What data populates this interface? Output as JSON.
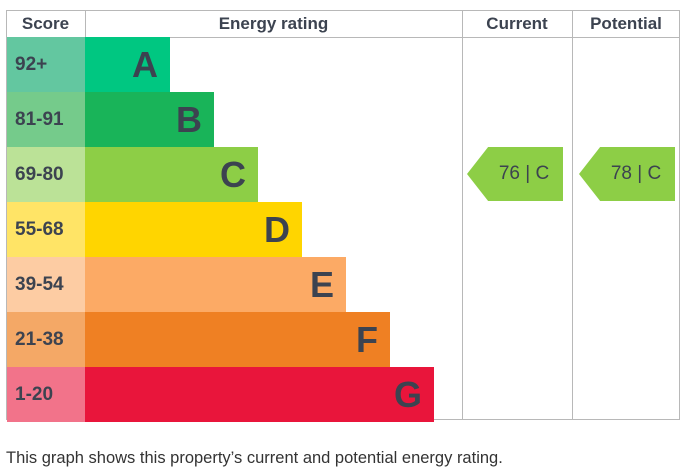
{
  "chart_data": {
    "type": "bar",
    "headers": {
      "score": "Score",
      "rating": "Energy rating",
      "current": "Current",
      "potential": "Potential"
    },
    "bands": [
      {
        "score": "92+",
        "letter": "A",
        "color": "#00c781",
        "score_color": "#63c7a0"
      },
      {
        "score": "81-91",
        "letter": "B",
        "color": "#19b459",
        "score_color": "#75cb8b"
      },
      {
        "score": "69-80",
        "letter": "C",
        "color": "#8dce46",
        "score_color": "#bbe297"
      },
      {
        "score": "55-68",
        "letter": "D",
        "color": "#ffd500",
        "score_color": "#ffe466"
      },
      {
        "score": "39-54",
        "letter": "E",
        "color": "#fcaa65",
        "score_color": "#fdcca3"
      },
      {
        "score": "21-38",
        "letter": "F",
        "color": "#ef8023",
        "score_color": "#f4a866"
      },
      {
        "score": "1-20",
        "letter": "G",
        "color": "#e9153b",
        "score_color": "#f2738a"
      }
    ],
    "current": {
      "value": 76,
      "band": "C",
      "label": "76 | C",
      "color": "#8dce46"
    },
    "potential": {
      "value": 78,
      "band": "C",
      "label": "78 | C",
      "color": "#8dce46"
    }
  },
  "caption": "This graph shows this property’s current and potential energy rating."
}
